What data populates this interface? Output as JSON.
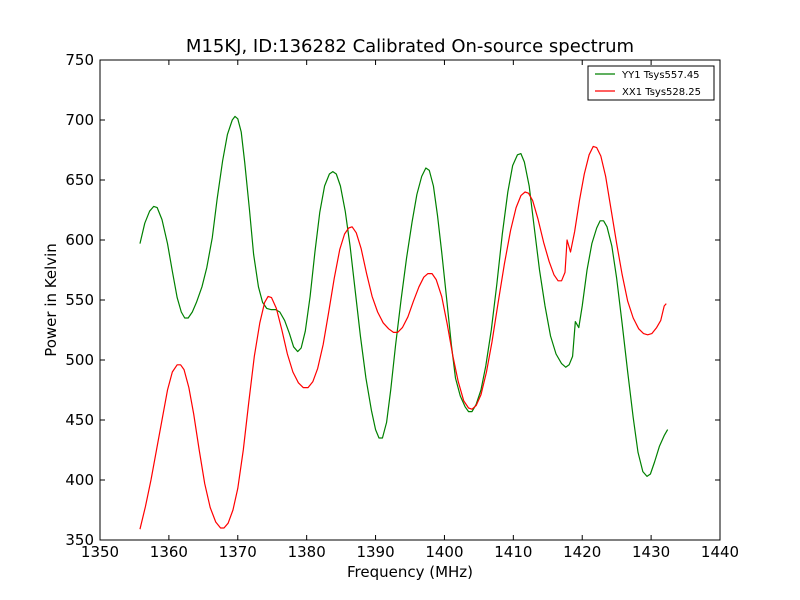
{
  "chart_data": {
    "type": "line",
    "title": "M15KJ, ID:136282 Calibrated On-source spectrum",
    "xlabel": "Frequency (MHz)",
    "ylabel": "Power in Kelvin",
    "xlim": [
      1350,
      1440
    ],
    "ylim": [
      350,
      750
    ],
    "xticks": [
      "1350",
      "1360",
      "1370",
      "1380",
      "1390",
      "1400",
      "1410",
      "1420",
      "1430",
      "1440"
    ],
    "yticks": [
      "350",
      "400",
      "450",
      "500",
      "550",
      "600",
      "650",
      "700",
      "750"
    ],
    "grid": false,
    "legend_position": "top-right",
    "series": [
      {
        "name": "YY1 Tsys557.45",
        "color": "#008000",
        "points": [
          [
            1355.8,
            597
          ],
          [
            1356.5,
            614
          ],
          [
            1357.2,
            624
          ],
          [
            1357.8,
            628
          ],
          [
            1358.3,
            627
          ],
          [
            1359.0,
            617
          ],
          [
            1359.8,
            597
          ],
          [
            1360.5,
            574
          ],
          [
            1361.2,
            552
          ],
          [
            1361.8,
            540
          ],
          [
            1362.3,
            535
          ],
          [
            1362.8,
            535
          ],
          [
            1363.4,
            540
          ],
          [
            1364.0,
            548
          ],
          [
            1364.8,
            561
          ],
          [
            1365.5,
            577
          ],
          [
            1366.3,
            602
          ],
          [
            1367.0,
            634
          ],
          [
            1367.8,
            666
          ],
          [
            1368.5,
            688
          ],
          [
            1369.2,
            700
          ],
          [
            1369.6,
            703
          ],
          [
            1370.0,
            701
          ],
          [
            1370.5,
            690
          ],
          [
            1371.0,
            665
          ],
          [
            1371.7,
            625
          ],
          [
            1372.3,
            588
          ],
          [
            1373.0,
            561
          ],
          [
            1373.6,
            548
          ],
          [
            1374.2,
            543
          ],
          [
            1374.8,
            542
          ],
          [
            1375.5,
            542
          ],
          [
            1376.1,
            540
          ],
          [
            1376.8,
            533
          ],
          [
            1377.5,
            522
          ],
          [
            1378.1,
            511
          ],
          [
            1378.7,
            507
          ],
          [
            1379.2,
            510
          ],
          [
            1379.8,
            524
          ],
          [
            1380.5,
            553
          ],
          [
            1381.2,
            590
          ],
          [
            1381.9,
            623
          ],
          [
            1382.6,
            645
          ],
          [
            1383.3,
            655
          ],
          [
            1383.8,
            657
          ],
          [
            1384.3,
            655
          ],
          [
            1384.9,
            645
          ],
          [
            1385.6,
            624
          ],
          [
            1386.3,
            595
          ],
          [
            1387.0,
            560
          ],
          [
            1387.8,
            520
          ],
          [
            1388.6,
            485
          ],
          [
            1389.4,
            458
          ],
          [
            1390.0,
            442
          ],
          [
            1390.5,
            435
          ],
          [
            1391.0,
            435
          ],
          [
            1391.6,
            448
          ],
          [
            1392.2,
            475
          ],
          [
            1392.9,
            512
          ],
          [
            1393.7,
            550
          ],
          [
            1394.5,
            585
          ],
          [
            1395.3,
            615
          ],
          [
            1396.0,
            638
          ],
          [
            1396.7,
            653
          ],
          [
            1397.3,
            660
          ],
          [
            1397.8,
            658
          ],
          [
            1398.4,
            645
          ],
          [
            1399.0,
            620
          ],
          [
            1399.6,
            590
          ],
          [
            1400.3,
            552
          ],
          [
            1401.0,
            513
          ],
          [
            1401.6,
            485
          ],
          [
            1402.3,
            470
          ],
          [
            1403.0,
            461
          ],
          [
            1403.5,
            457
          ],
          [
            1404.0,
            457
          ],
          [
            1404.6,
            463
          ],
          [
            1405.3,
            475
          ],
          [
            1406.0,
            495
          ],
          [
            1406.8,
            525
          ],
          [
            1407.6,
            563
          ],
          [
            1408.4,
            605
          ],
          [
            1409.2,
            640
          ],
          [
            1409.9,
            662
          ],
          [
            1410.6,
            671
          ],
          [
            1411.1,
            672
          ],
          [
            1411.6,
            665
          ],
          [
            1412.3,
            645
          ],
          [
            1413.0,
            612
          ],
          [
            1413.8,
            575
          ],
          [
            1414.6,
            545
          ],
          [
            1415.4,
            520
          ],
          [
            1416.2,
            505
          ],
          [
            1417.0,
            497
          ],
          [
            1417.6,
            494
          ],
          [
            1418.1,
            496
          ],
          [
            1418.6,
            503
          ],
          [
            1419.0,
            532
          ],
          [
            1419.5,
            527
          ],
          [
            1420.0,
            545
          ],
          [
            1420.7,
            575
          ],
          [
            1421.4,
            597
          ],
          [
            1422.1,
            610
          ],
          [
            1422.6,
            616
          ],
          [
            1423.1,
            616
          ],
          [
            1423.6,
            611
          ],
          [
            1424.3,
            595
          ],
          [
            1425.0,
            568
          ],
          [
            1425.8,
            530
          ],
          [
            1426.6,
            490
          ],
          [
            1427.4,
            452
          ],
          [
            1428.1,
            423
          ],
          [
            1428.8,
            407
          ],
          [
            1429.4,
            403
          ],
          [
            1429.9,
            405
          ],
          [
            1430.5,
            415
          ],
          [
            1431.2,
            428
          ],
          [
            1431.9,
            437
          ],
          [
            1432.4,
            442
          ]
        ]
      },
      {
        "name": "XX1 Tsys528.25",
        "color": "#ff0000",
        "points": [
          [
            1355.8,
            359
          ],
          [
            1356.6,
            378
          ],
          [
            1357.4,
            400
          ],
          [
            1358.2,
            425
          ],
          [
            1359.0,
            450
          ],
          [
            1359.8,
            475
          ],
          [
            1360.5,
            490
          ],
          [
            1361.2,
            496
          ],
          [
            1361.7,
            496
          ],
          [
            1362.2,
            492
          ],
          [
            1362.9,
            477
          ],
          [
            1363.6,
            455
          ],
          [
            1364.4,
            425
          ],
          [
            1365.2,
            397
          ],
          [
            1366.0,
            377
          ],
          [
            1366.8,
            365
          ],
          [
            1367.5,
            360
          ],
          [
            1368.0,
            360
          ],
          [
            1368.6,
            364
          ],
          [
            1369.3,
            375
          ],
          [
            1370.0,
            393
          ],
          [
            1370.8,
            425
          ],
          [
            1371.6,
            465
          ],
          [
            1372.4,
            503
          ],
          [
            1373.2,
            531
          ],
          [
            1373.9,
            548
          ],
          [
            1374.4,
            553
          ],
          [
            1374.9,
            552
          ],
          [
            1375.6,
            543
          ],
          [
            1376.4,
            525
          ],
          [
            1377.2,
            505
          ],
          [
            1378.0,
            490
          ],
          [
            1378.8,
            481
          ],
          [
            1379.5,
            477
          ],
          [
            1380.2,
            477
          ],
          [
            1380.9,
            482
          ],
          [
            1381.6,
            493
          ],
          [
            1382.4,
            513
          ],
          [
            1383.2,
            540
          ],
          [
            1384.0,
            568
          ],
          [
            1384.8,
            592
          ],
          [
            1385.5,
            605
          ],
          [
            1386.1,
            610
          ],
          [
            1386.6,
            611
          ],
          [
            1387.2,
            606
          ],
          [
            1387.9,
            593
          ],
          [
            1388.7,
            572
          ],
          [
            1389.5,
            553
          ],
          [
            1390.3,
            540
          ],
          [
            1391.1,
            531
          ],
          [
            1391.9,
            526
          ],
          [
            1392.6,
            523
          ],
          [
            1393.2,
            523
          ],
          [
            1393.9,
            527
          ],
          [
            1394.7,
            536
          ],
          [
            1395.5,
            549
          ],
          [
            1396.3,
            561
          ],
          [
            1397.0,
            569
          ],
          [
            1397.6,
            572
          ],
          [
            1398.2,
            572
          ],
          [
            1398.8,
            567
          ],
          [
            1399.6,
            553
          ],
          [
            1400.4,
            530
          ],
          [
            1401.2,
            504
          ],
          [
            1402.0,
            482
          ],
          [
            1402.8,
            466
          ],
          [
            1403.5,
            460
          ],
          [
            1404.0,
            459
          ],
          [
            1404.6,
            462
          ],
          [
            1405.3,
            471
          ],
          [
            1406.1,
            490
          ],
          [
            1406.9,
            515
          ],
          [
            1407.8,
            548
          ],
          [
            1408.7,
            580
          ],
          [
            1409.6,
            608
          ],
          [
            1410.4,
            627
          ],
          [
            1411.1,
            637
          ],
          [
            1411.7,
            640
          ],
          [
            1412.2,
            639
          ],
          [
            1412.8,
            633
          ],
          [
            1413.6,
            617
          ],
          [
            1414.4,
            598
          ],
          [
            1415.2,
            582
          ],
          [
            1415.9,
            571
          ],
          [
            1416.5,
            566
          ],
          [
            1417.0,
            566
          ],
          [
            1417.5,
            573
          ],
          [
            1417.8,
            600
          ],
          [
            1418.3,
            590
          ],
          [
            1418.9,
            607
          ],
          [
            1419.6,
            633
          ],
          [
            1420.3,
            655
          ],
          [
            1421.0,
            671
          ],
          [
            1421.6,
            678
          ],
          [
            1422.1,
            677
          ],
          [
            1422.7,
            670
          ],
          [
            1423.4,
            653
          ],
          [
            1424.2,
            625
          ],
          [
            1425.0,
            597
          ],
          [
            1425.8,
            571
          ],
          [
            1426.6,
            549
          ],
          [
            1427.4,
            535
          ],
          [
            1428.2,
            526
          ],
          [
            1428.9,
            522
          ],
          [
            1429.5,
            521
          ],
          [
            1430.1,
            522
          ],
          [
            1430.8,
            527
          ],
          [
            1431.4,
            533
          ],
          [
            1431.9,
            545
          ],
          [
            1432.2,
            547
          ]
        ]
      }
    ]
  }
}
